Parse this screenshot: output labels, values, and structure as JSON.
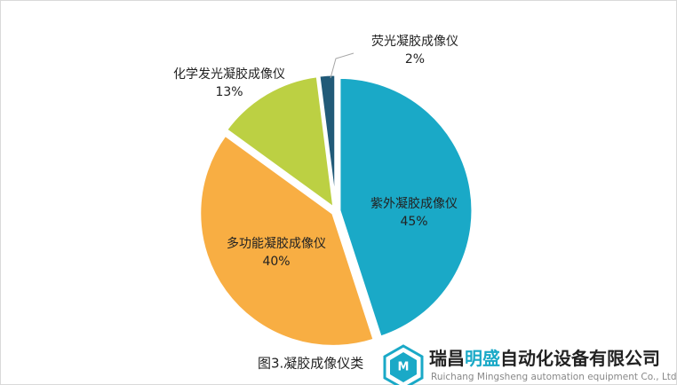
{
  "chart_data": {
    "type": "pie",
    "categories": [
      "紫外凝胶成像仪",
      "多功能凝胶成像仪",
      "化学发光凝胶成像仪",
      "荧光凝胶成像仪"
    ],
    "values": [
      45,
      40,
      13,
      2
    ],
    "value_labels": [
      "45%",
      "40%",
      "13%",
      "2%"
    ],
    "colors": [
      "#1aa9c7",
      "#f8ae43",
      "#bcd043",
      "#215a78"
    ],
    "caption": "图3.凝胶成像仪类"
  },
  "watermark": {
    "name": [
      "瑞昌",
      "明盛",
      "自动化设备有限公司"
    ],
    "subtitle": "Ruichang Mingsheng automation equipment Co., Ltd"
  }
}
